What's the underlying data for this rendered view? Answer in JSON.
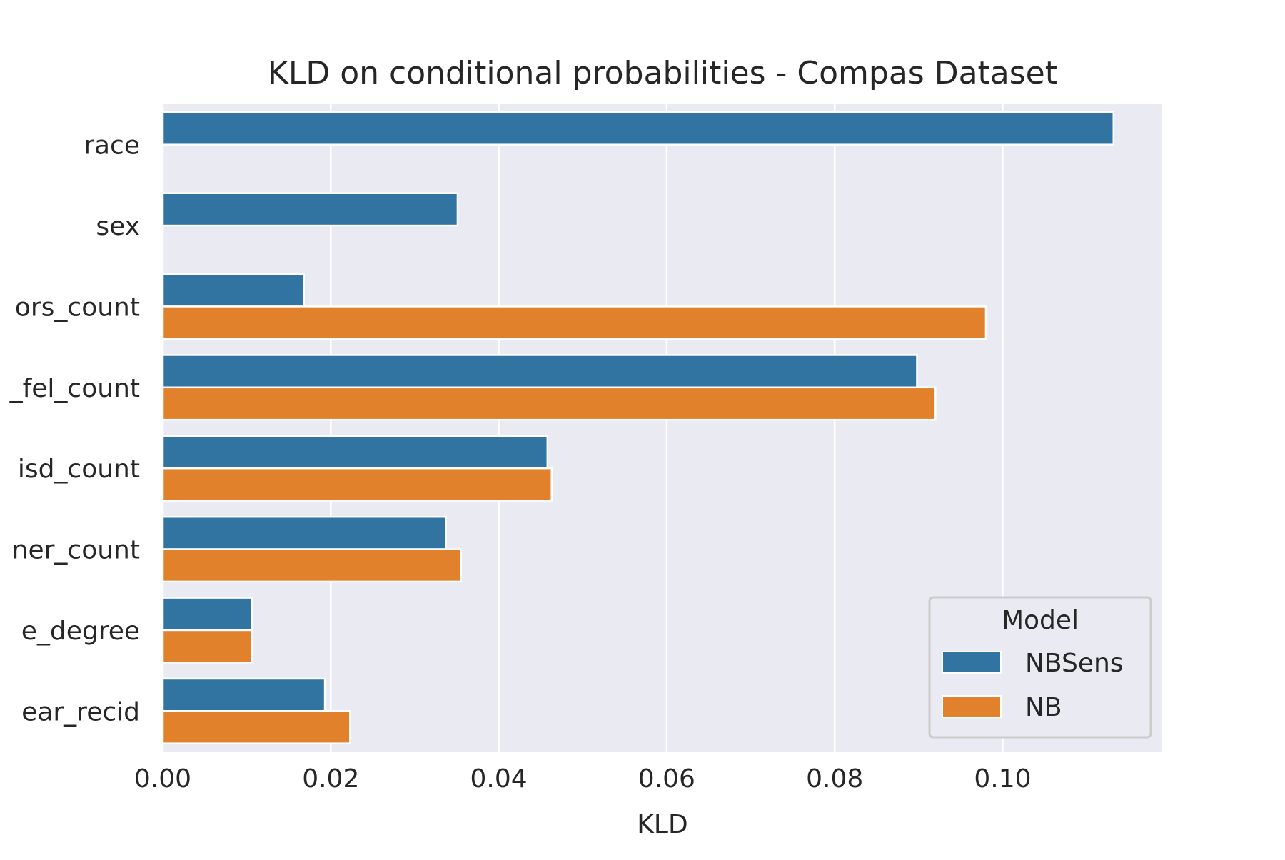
{
  "chart_data": {
    "type": "bar",
    "orientation": "horizontal",
    "title": "KLD on conditional probabilities - Compas Dataset",
    "xlabel": "KLD",
    "ylabel": "",
    "categories": [
      "race",
      "sex",
      "ors_count",
      "_fel_count",
      "isd_count",
      "ner_count",
      "e_degree",
      "ear_recid"
    ],
    "series": [
      {
        "name": "NBSens",
        "color": "#3274a1",
        "values": [
          0.1132,
          0.0351,
          0.0168,
          0.0898,
          0.0458,
          0.0337,
          0.0106,
          0.0193
        ]
      },
      {
        "name": "NB",
        "color": "#e1812c",
        "values": [
          null,
          null,
          0.098,
          0.092,
          0.0463,
          0.0355,
          0.0106,
          0.0223
        ]
      }
    ],
    "xlim": [
      0,
      0.119
    ],
    "xticks": [
      "0.00",
      "0.02",
      "0.04",
      "0.06",
      "0.08",
      "0.10"
    ],
    "grid": true,
    "background": "#eaeaf2",
    "legend": {
      "title": "Model",
      "position": "lower-right"
    }
  }
}
